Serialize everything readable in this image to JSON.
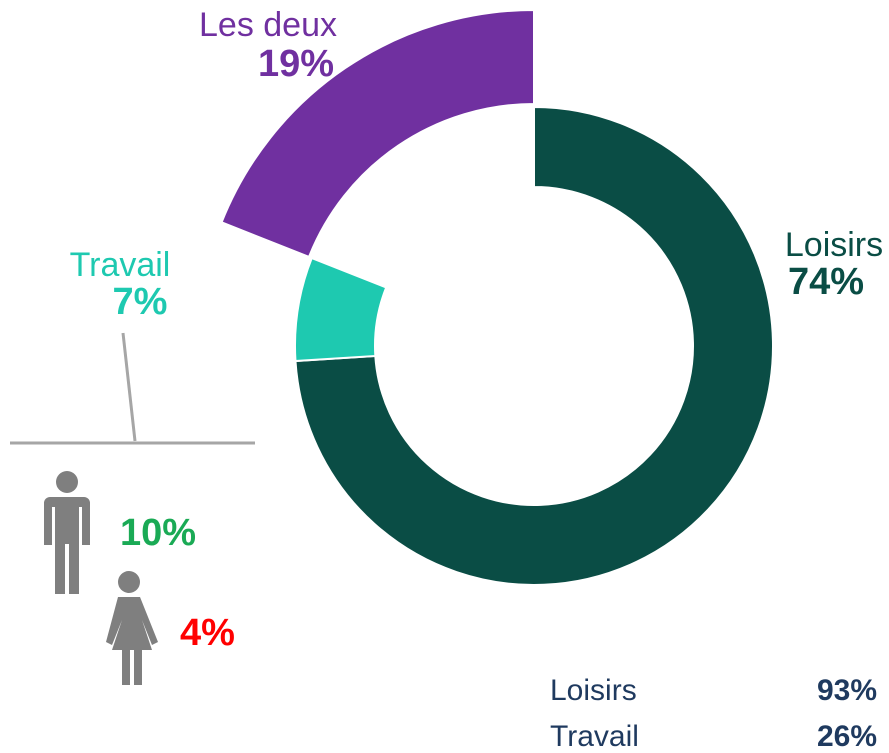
{
  "chart_data": {
    "type": "donut",
    "categories": [
      "Loisirs",
      "Travail",
      "Les deux"
    ],
    "values": [
      74,
      7,
      19
    ],
    "value_labels": [
      "74%",
      "7%",
      "19%"
    ],
    "colors": [
      "#0a4d45",
      "#1ec9b0",
      "#7030a0"
    ],
    "exploded": [
      false,
      false,
      true
    ]
  },
  "gender_breakdown": {
    "men": "10%",
    "women": "4%"
  },
  "table": {
    "rows": [
      [
        "Loisirs",
        "93%"
      ],
      [
        "Travail",
        "26%"
      ]
    ]
  }
}
